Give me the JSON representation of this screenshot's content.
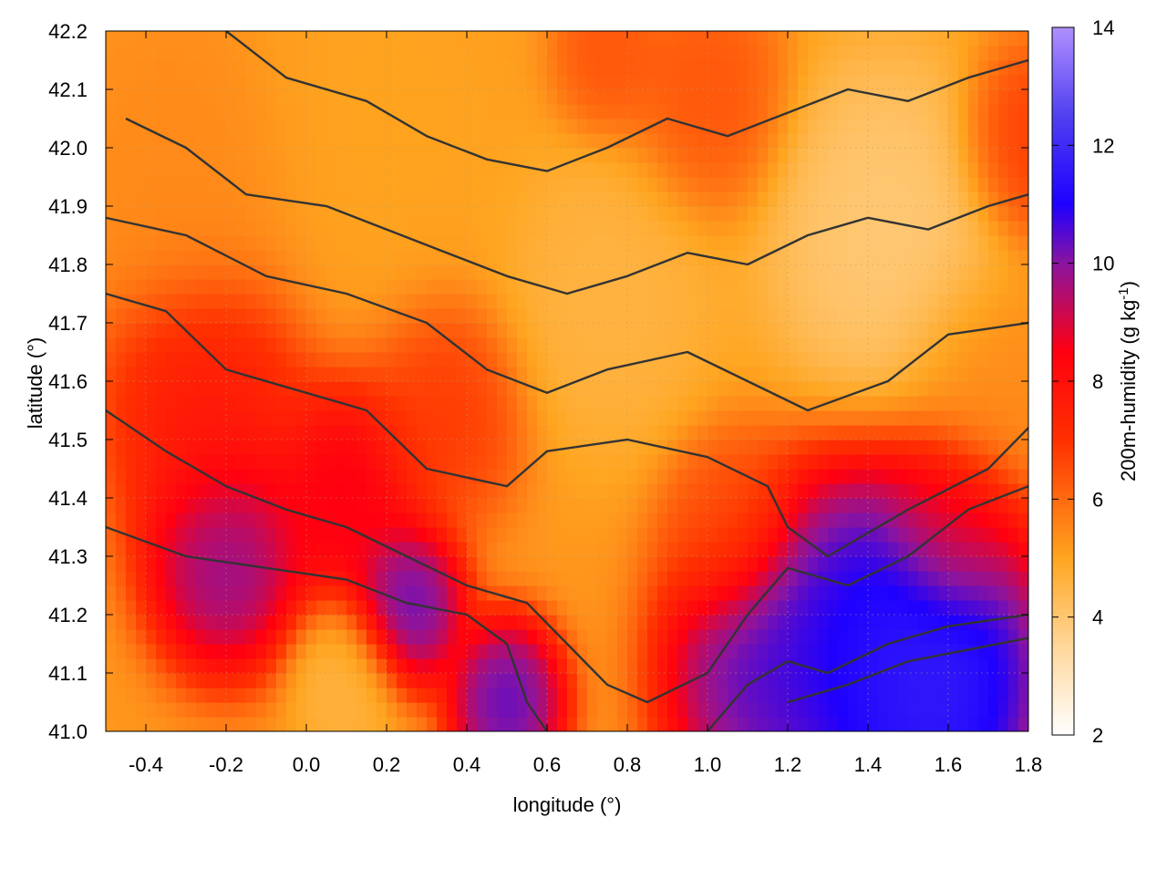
{
  "chart_data": {
    "type": "heatmap",
    "title": "",
    "xlabel": "longitude (°)",
    "ylabel": "latitude (°)",
    "colorbar_label": "200m-humidity (g kg",
    "colorbar_label_sup": "-1",
    "colorbar_label_end": ")",
    "xlim": [
      -0.5,
      1.8
    ],
    "ylim": [
      41.0,
      42.2
    ],
    "zlim": [
      2,
      14
    ],
    "x_ticks": [
      "-0.4",
      "-0.2",
      "0.0",
      "0.2",
      "0.4",
      "0.6",
      "0.8",
      "1.0",
      "1.2",
      "1.4",
      "1.6",
      "1.8"
    ],
    "x_tick_values": [
      -0.4,
      -0.2,
      0.0,
      0.2,
      0.4,
      0.6,
      0.8,
      1.0,
      1.2,
      1.4,
      1.6,
      1.8
    ],
    "y_ticks": [
      "41.0",
      "41.1",
      "41.2",
      "41.3",
      "41.4",
      "41.5",
      "41.6",
      "41.7",
      "41.8",
      "41.9",
      "42.0",
      "42.1",
      "42.2"
    ],
    "y_tick_values": [
      41.0,
      41.1,
      41.2,
      41.3,
      41.4,
      41.5,
      41.6,
      41.7,
      41.8,
      41.9,
      42.0,
      42.1,
      42.2
    ],
    "colorbar_ticks": [
      "2",
      "4",
      "6",
      "8",
      "10",
      "12",
      "14"
    ],
    "colorbar_tick_values": [
      2,
      4,
      6,
      8,
      10,
      12,
      14
    ],
    "colormap": [
      {
        "value": 2,
        "color": "#ffffff"
      },
      {
        "value": 3.5,
        "color": "#ffd79a"
      },
      {
        "value": 5,
        "color": "#ffa520"
      },
      {
        "value": 7,
        "color": "#ff3000"
      },
      {
        "value": 8.5,
        "color": "#ff0010"
      },
      {
        "value": 10,
        "color": "#8a14a0"
      },
      {
        "value": 11,
        "color": "#1e00ff"
      },
      {
        "value": 12.5,
        "color": "#5040f0"
      },
      {
        "value": 14,
        "color": "#b090ff"
      }
    ],
    "grid": true,
    "contour_color": "#333333",
    "contours": [
      {
        "level": 5,
        "points": [
          [
            -0.5,
            41.75
          ],
          [
            -0.35,
            41.72
          ],
          [
            -0.2,
            41.62
          ],
          [
            0.0,
            41.58
          ],
          [
            0.15,
            41.55
          ],
          [
            0.3,
            41.45
          ],
          [
            0.5,
            41.42
          ],
          [
            0.6,
            41.48
          ],
          [
            0.8,
            41.5
          ],
          [
            1.0,
            41.47
          ],
          [
            1.15,
            41.42
          ],
          [
            1.2,
            41.35
          ],
          [
            1.3,
            41.3
          ],
          [
            1.5,
            41.38
          ],
          [
            1.7,
            41.45
          ],
          [
            1.8,
            41.52
          ]
        ]
      },
      {
        "level": 4.5,
        "points": [
          [
            -0.5,
            41.88
          ],
          [
            -0.3,
            41.85
          ],
          [
            -0.1,
            41.78
          ],
          [
            0.1,
            41.75
          ],
          [
            0.3,
            41.7
          ],
          [
            0.45,
            41.62
          ],
          [
            0.6,
            41.58
          ],
          [
            0.75,
            41.62
          ],
          [
            0.95,
            41.65
          ],
          [
            1.1,
            41.6
          ],
          [
            1.25,
            41.55
          ],
          [
            1.45,
            41.6
          ],
          [
            1.6,
            41.68
          ],
          [
            1.8,
            41.7
          ]
        ]
      },
      {
        "level": 4,
        "points": [
          [
            -0.45,
            42.05
          ],
          [
            -0.3,
            42.0
          ],
          [
            -0.15,
            41.92
          ],
          [
            0.05,
            41.9
          ],
          [
            0.2,
            41.86
          ],
          [
            0.35,
            41.82
          ],
          [
            0.5,
            41.78
          ],
          [
            0.65,
            41.75
          ],
          [
            0.8,
            41.78
          ],
          [
            0.95,
            41.82
          ],
          [
            1.1,
            41.8
          ],
          [
            1.25,
            41.85
          ],
          [
            1.4,
            41.88
          ],
          [
            1.55,
            41.86
          ],
          [
            1.7,
            41.9
          ],
          [
            1.8,
            41.92
          ]
        ]
      },
      {
        "level": 3.5,
        "points": [
          [
            -0.2,
            42.2
          ],
          [
            -0.05,
            42.12
          ],
          [
            0.15,
            42.08
          ],
          [
            0.3,
            42.02
          ],
          [
            0.45,
            41.98
          ],
          [
            0.6,
            41.96
          ],
          [
            0.75,
            42.0
          ],
          [
            0.9,
            42.05
          ],
          [
            1.05,
            42.02
          ],
          [
            1.2,
            42.06
          ],
          [
            1.35,
            42.1
          ],
          [
            1.5,
            42.08
          ],
          [
            1.65,
            42.12
          ],
          [
            1.8,
            42.15
          ]
        ]
      },
      {
        "level": 6.5,
        "points": [
          [
            -0.5,
            41.55
          ],
          [
            -0.35,
            41.48
          ],
          [
            -0.2,
            41.42
          ],
          [
            -0.05,
            41.38
          ],
          [
            0.1,
            41.35
          ],
          [
            0.25,
            41.3
          ],
          [
            0.4,
            41.25
          ],
          [
            0.55,
            41.22
          ],
          [
            0.65,
            41.15
          ],
          [
            0.75,
            41.08
          ],
          [
            0.85,
            41.05
          ],
          [
            1.0,
            41.1
          ],
          [
            1.1,
            41.2
          ],
          [
            1.2,
            41.28
          ],
          [
            1.35,
            41.25
          ],
          [
            1.5,
            41.3
          ],
          [
            1.65,
            41.38
          ],
          [
            1.8,
            41.42
          ]
        ]
      },
      {
        "level": 9,
        "points": [
          [
            -0.5,
            41.35
          ],
          [
            -0.3,
            41.3
          ],
          [
            -0.1,
            41.28
          ],
          [
            0.1,
            41.26
          ],
          [
            0.25,
            41.22
          ],
          [
            0.4,
            41.2
          ],
          [
            0.5,
            41.15
          ],
          [
            0.55,
            41.05
          ],
          [
            0.6,
            41.0
          ]
        ]
      },
      {
        "level": 11,
        "points": [
          [
            1.0,
            41.0
          ],
          [
            1.1,
            41.08
          ],
          [
            1.2,
            41.12
          ],
          [
            1.3,
            41.1
          ],
          [
            1.45,
            41.15
          ],
          [
            1.6,
            41.18
          ],
          [
            1.8,
            41.2
          ]
        ]
      },
      {
        "level": 12,
        "points": [
          [
            1.2,
            41.05
          ],
          [
            1.35,
            41.08
          ],
          [
            1.5,
            41.12
          ],
          [
            1.65,
            41.14
          ],
          [
            1.8,
            41.16
          ]
        ]
      }
    ],
    "field_centers": [
      {
        "x": 1.55,
        "y": 41.08,
        "value": 12.5,
        "spread": 0.22
      },
      {
        "x": 1.4,
        "y": 41.15,
        "value": 11.5,
        "spread": 0.22
      },
      {
        "x": 1.15,
        "y": 41.1,
        "value": 11,
        "spread": 0.18
      },
      {
        "x": 0.25,
        "y": 41.22,
        "value": 11,
        "spread": 0.1
      },
      {
        "x": 0.5,
        "y": 41.05,
        "value": 11,
        "spread": 0.1
      },
      {
        "x": -0.2,
        "y": 41.3,
        "value": 10.5,
        "spread": 0.14
      },
      {
        "x": 0.1,
        "y": 41.4,
        "value": 9,
        "spread": 0.14
      },
      {
        "x": -0.25,
        "y": 41.55,
        "value": 8,
        "spread": 0.18
      },
      {
        "x": 0.35,
        "y": 41.55,
        "value": 7,
        "spread": 0.14
      },
      {
        "x": 1.05,
        "y": 41.35,
        "value": 6.5,
        "spread": 0.12
      },
      {
        "x": 1.6,
        "y": 41.35,
        "value": 8.5,
        "spread": 0.12
      },
      {
        "x": 0.2,
        "y": 42.05,
        "value": 5,
        "spread": 0.25
      },
      {
        "x": 1.0,
        "y": 42.08,
        "value": 6.5,
        "spread": 0.14
      },
      {
        "x": 0.75,
        "y": 42.15,
        "value": 6.5,
        "spread": 0.1
      },
      {
        "x": -0.3,
        "y": 41.95,
        "value": 5.5,
        "spread": 0.2
      },
      {
        "x": 1.45,
        "y": 41.85,
        "value": 3.8,
        "spread": 0.22
      },
      {
        "x": 0.75,
        "y": 41.75,
        "value": 4.5,
        "spread": 0.2
      },
      {
        "x": 0.1,
        "y": 41.1,
        "value": 4.5,
        "spread": 0.1
      },
      {
        "x": 1.7,
        "y": 41.6,
        "value": 5.5,
        "spread": 0.15
      },
      {
        "x": 1.8,
        "y": 42.0,
        "value": 7,
        "spread": 0.12
      }
    ]
  }
}
